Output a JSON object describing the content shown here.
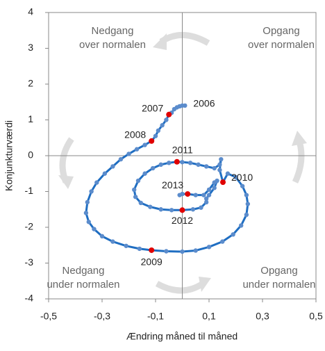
{
  "chart_data": {
    "type": "line",
    "x_label": "Ændring måned til måned",
    "y_label": "Konjunkturværdi",
    "xlim": [
      -0.5,
      0.5
    ],
    "ylim": [
      -4,
      4
    ],
    "xticks": [
      {
        "value": -0.5,
        "label": "-0,5"
      },
      {
        "value": -0.3,
        "label": "-0,3"
      },
      {
        "value": -0.1,
        "label": "-0,1"
      },
      {
        "value": 0.1,
        "label": "0,1"
      },
      {
        "value": 0.3,
        "label": "0,3"
      },
      {
        "value": 0.5,
        "label": "0,5"
      }
    ],
    "yticks": [
      4,
      3,
      2,
      1,
      0,
      -1,
      -2,
      -3,
      -4
    ],
    "series": [
      {
        "color": "#1f6ec2",
        "marker_color": "#5b8ccc",
        "x": [
          0.01,
          0.0,
          -0.01,
          -0.02,
          -0.03,
          -0.04,
          -0.05,
          -0.06,
          -0.075,
          -0.09,
          -0.1,
          -0.115,
          -0.14,
          -0.17,
          -0.2,
          -0.23,
          -0.26,
          -0.29,
          -0.32,
          -0.34,
          -0.355,
          -0.36,
          -0.35,
          -0.33,
          -0.3,
          -0.26,
          -0.21,
          -0.16,
          -0.115,
          -0.06,
          0.0,
          0.05,
          0.1,
          0.15,
          0.19,
          0.22,
          0.24,
          0.245,
          0.24,
          0.225,
          0.2,
          0.17,
          0.152,
          0.14,
          0.145,
          0.14,
          0.12,
          0.09,
          0.06,
          0.03,
          0.0,
          -0.02,
          -0.05,
          -0.08,
          -0.11,
          -0.14,
          -0.165,
          -0.18,
          -0.175,
          -0.155,
          -0.12,
          -0.08,
          -0.04,
          0.0,
          0.04,
          0.07,
          0.09,
          0.09,
          0.1,
          0.12,
          0.13,
          0.12,
          0.1,
          0.08,
          0.05,
          0.02,
          0.0,
          -0.01
        ],
        "values": [
          1.4,
          1.4,
          1.38,
          1.35,
          1.3,
          1.2,
          1.15,
          1.0,
          0.85,
          0.7,
          0.55,
          0.41,
          0.3,
          0.18,
          0.05,
          -0.1,
          -0.3,
          -0.5,
          -0.75,
          -1.0,
          -1.3,
          -1.6,
          -1.85,
          -2.05,
          -2.25,
          -2.4,
          -2.52,
          -2.6,
          -2.64,
          -2.67,
          -2.68,
          -2.65,
          -2.55,
          -2.4,
          -2.2,
          -1.95,
          -1.65,
          -1.35,
          -1.1,
          -0.85,
          -0.6,
          -0.5,
          -0.74,
          -0.4,
          -0.1,
          -0.25,
          -0.35,
          -0.3,
          -0.25,
          -0.2,
          -0.18,
          -0.17,
          -0.2,
          -0.25,
          -0.35,
          -0.5,
          -0.7,
          -0.95,
          -1.15,
          -1.32,
          -1.43,
          -1.5,
          -1.52,
          -1.52,
          -1.5,
          -1.45,
          -1.3,
          -1.2,
          -1.1,
          -0.9,
          -0.7,
          -0.75,
          -0.95,
          -1.1,
          -1.1,
          -1.07,
          -1.07,
          -1.1
        ]
      }
    ],
    "highlight_color": "#e00000",
    "highlights": [
      {
        "label": "2006",
        "x": 0.01,
        "y": 1.4,
        "marker": false
      },
      {
        "label": "2007",
        "x": -0.05,
        "y": 1.15,
        "marker": true
      },
      {
        "label": "2008",
        "x": -0.115,
        "y": 0.41,
        "marker": true
      },
      {
        "label": "2009",
        "x": -0.115,
        "y": -2.64,
        "marker": true
      },
      {
        "label": "2010",
        "x": 0.152,
        "y": -0.74,
        "marker": true
      },
      {
        "label": "2011",
        "x": -0.02,
        "y": -0.17,
        "marker": true
      },
      {
        "label": "2012",
        "x": 0.0,
        "y": -1.52,
        "marker": true
      },
      {
        "label": "2013",
        "x": 0.02,
        "y": -1.07,
        "marker": true
      }
    ],
    "quadrants": [
      [
        "Nedgang",
        "over normalen"
      ],
      [
        "Opgang",
        "over normalen"
      ],
      [
        "Nedgang",
        "under normalen"
      ],
      [
        "Opgang",
        "under normalen"
      ]
    ]
  }
}
